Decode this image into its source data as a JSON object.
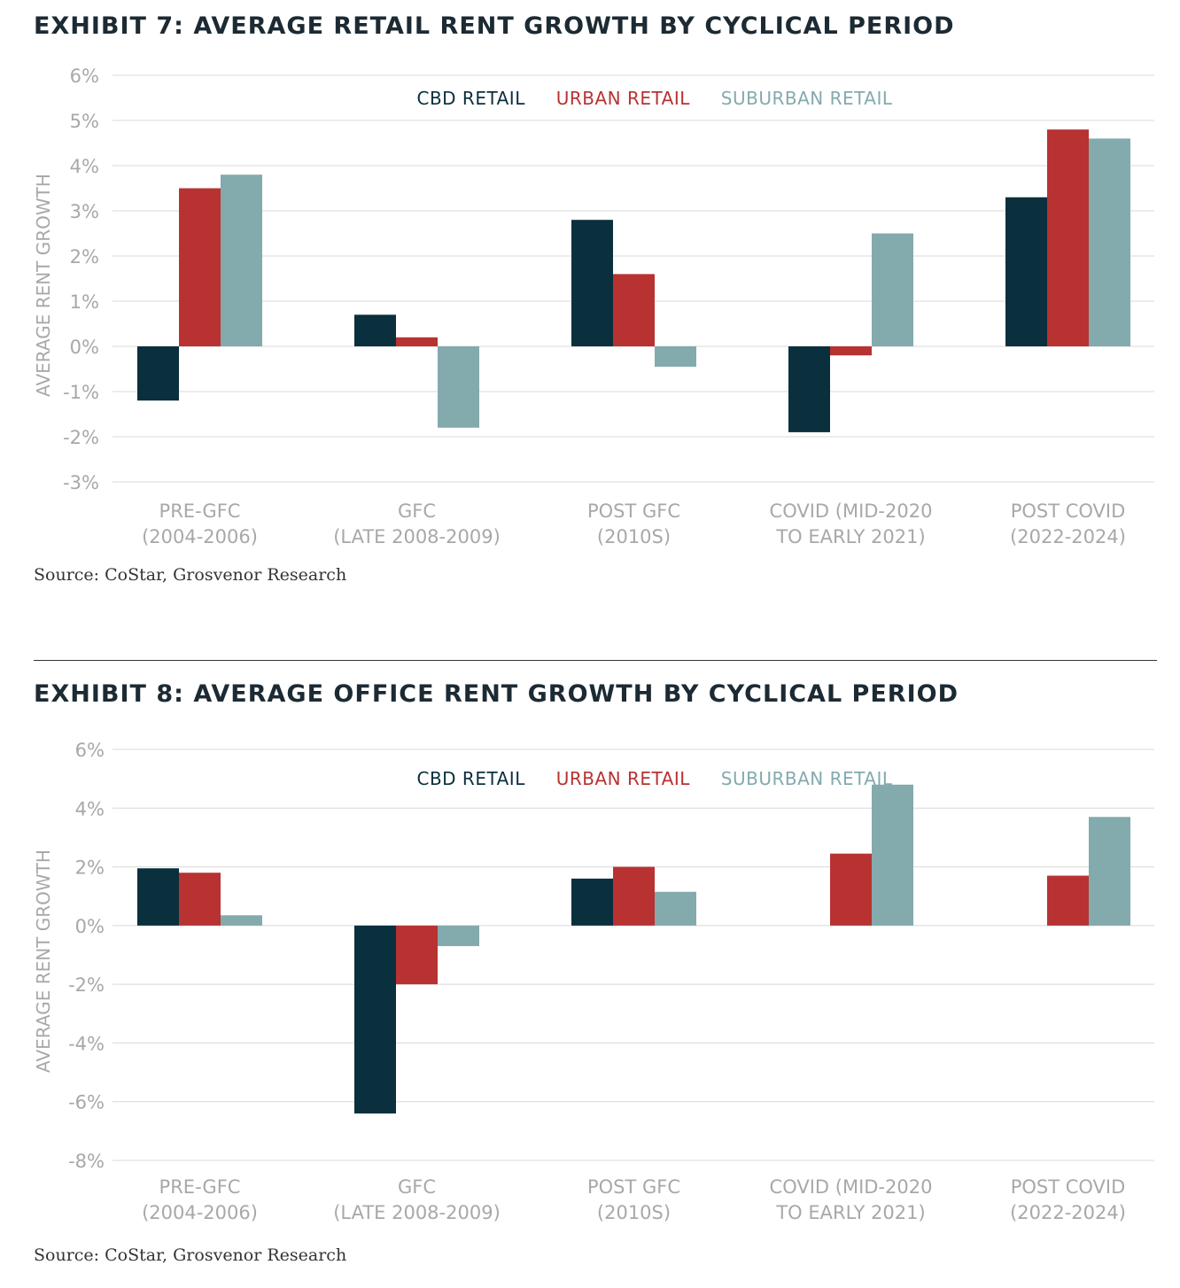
{
  "colors": {
    "cbd": "#0a2f3d",
    "urban": "#b83232",
    "suburban": "#83aaad",
    "grid": "#d8d8d8",
    "axis_text": "#a8a8a8"
  },
  "exhibit7": {
    "title": "EXHIBIT 7: AVERAGE RETAIL RENT GROWTH BY CYCLICAL PERIOD",
    "source": "Source: CoStar, Grosvenor Research",
    "chart_data": {
      "type": "bar",
      "ylabel": "AVERAGE RENT GROWTH",
      "xlabel": "",
      "ylim": [
        -3,
        6
      ],
      "yticks": [
        "6%",
        "5%",
        "4%",
        "3%",
        "2%",
        "1%",
        "0%",
        "-1%",
        "-2%",
        "-3%"
      ],
      "yticks_values": [
        6,
        5,
        4,
        3,
        2,
        1,
        0,
        -1,
        -2,
        -3
      ],
      "legend_position": "top-center",
      "categories": [
        [
          "PRE-GFC",
          "(2004-2006)"
        ],
        [
          "GFC",
          "(LATE 2008-2009)"
        ],
        [
          "POST GFC",
          "(2010S)"
        ],
        [
          "COVID (MID-2020",
          "TO EARLY 2021)"
        ],
        [
          "POST COVID",
          "(2022-2024)"
        ]
      ],
      "series": [
        {
          "name": "CBD RETAIL",
          "color": "#0a2f3d",
          "values": [
            -1.2,
            0.7,
            2.8,
            -1.9,
            3.3
          ]
        },
        {
          "name": "URBAN RETAIL",
          "color": "#b83232",
          "values": [
            3.5,
            0.2,
            1.6,
            -0.2,
            4.8
          ]
        },
        {
          "name": "SUBURBAN RETAIL",
          "color": "#83aaad",
          "values": [
            3.8,
            -1.8,
            -0.45,
            2.5,
            4.6
          ]
        }
      ]
    }
  },
  "exhibit8": {
    "title": "EXHIBIT 8: AVERAGE OFFICE RENT GROWTH BY CYCLICAL PERIOD",
    "source": "Source: CoStar, Grosvenor Research",
    "chart_data": {
      "type": "bar",
      "ylabel": "AVERAGE RENT GROWTH",
      "xlabel": "",
      "ylim": [
        -8,
        6
      ],
      "yticks": [
        "6%",
        "4%",
        "2%",
        "0%",
        "-2%",
        "-4%",
        "-6%",
        "-8%"
      ],
      "yticks_values": [
        6,
        4,
        2,
        0,
        -2,
        -4,
        -6,
        -8
      ],
      "legend_position": "top-center",
      "categories": [
        [
          "PRE-GFC",
          "(2004-2006)"
        ],
        [
          "GFC",
          "(LATE 2008-2009)"
        ],
        [
          "POST GFC",
          "(2010S)"
        ],
        [
          "COVID (MID-2020",
          "TO EARLY 2021)"
        ],
        [
          "POST COVID",
          "(2022-2024)"
        ]
      ],
      "series": [
        {
          "name": "CBD RETAIL",
          "color": "#0a2f3d",
          "values": [
            1.95,
            -6.4,
            1.6,
            0,
            0
          ]
        },
        {
          "name": "URBAN RETAIL",
          "color": "#b83232",
          "values": [
            1.8,
            -2.0,
            2.0,
            2.45,
            1.7
          ]
        },
        {
          "name": "SUBURBAN RETAIL",
          "color": "#83aaad",
          "values": [
            0.35,
            -0.7,
            1.15,
            4.8,
            3.7
          ]
        }
      ]
    }
  }
}
